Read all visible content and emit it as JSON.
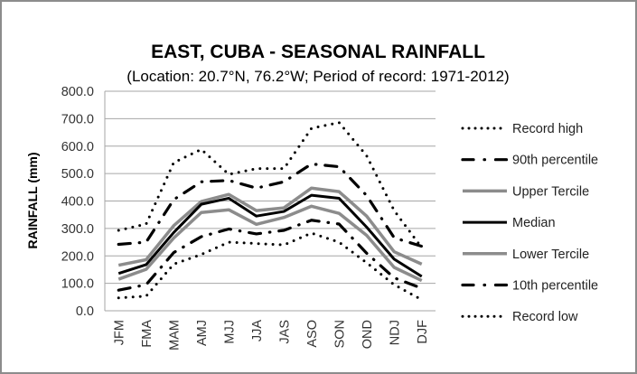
{
  "chart_data": {
    "type": "line",
    "title": "EAST, CUBA - SEASONAL RAINFALL",
    "subtitle": "(Location: 20.7°N, 76.2°W; Period of record: 1971-2012)",
    "xlabel": "",
    "ylabel": "RAINFALL (mm)",
    "ylim": [
      0,
      800
    ],
    "yticks": [
      "0.0",
      "100.0",
      "200.0",
      "300.0",
      "400.0",
      "500.0",
      "600.0",
      "700.0",
      "800.0"
    ],
    "ytick_values": [
      0,
      100,
      200,
      300,
      400,
      500,
      600,
      700,
      800
    ],
    "grid": true,
    "legend_position": "right",
    "categories": [
      "JFM",
      "FMA",
      "MAM",
      "AMJ",
      "MJJ",
      "JJA",
      "JAS",
      "ASO",
      "SON",
      "OND",
      "NDJ",
      "DJF"
    ],
    "series": [
      {
        "name": "Record high",
        "style": "dotted",
        "color": "#000000",
        "values": [
          293,
          316,
          540,
          588,
          497,
          518,
          518,
          665,
          686,
          565,
          365,
          230
        ]
      },
      {
        "name": "90th percentile",
        "style": "dash-dot",
        "color": "#000000",
        "values": [
          242,
          250,
          405,
          470,
          475,
          447,
          470,
          535,
          525,
          420,
          266,
          235
        ]
      },
      {
        "name": "Upper Tercile",
        "style": "solid",
        "color": "#8c8c8c",
        "values": [
          166,
          186,
          310,
          398,
          424,
          365,
          375,
          447,
          434,
          345,
          215,
          170
        ]
      },
      {
        "name": "Median",
        "style": "solid",
        "color": "#000000",
        "values": [
          136,
          168,
          285,
          388,
          410,
          345,
          362,
          421,
          410,
          305,
          188,
          125
        ]
      },
      {
        "name": "Lower Tercile",
        "style": "solid",
        "color": "#8c8c8c",
        "values": [
          115,
          151,
          265,
          358,
          368,
          315,
          340,
          381,
          355,
          275,
          158,
          110
        ]
      },
      {
        "name": "10th percentile",
        "style": "dash-dot",
        "color": "#000000",
        "values": [
          75,
          95,
          212,
          270,
          298,
          280,
          293,
          330,
          316,
          210,
          120,
          82
        ]
      },
      {
        "name": "Record low",
        "style": "dotted",
        "color": "#000000",
        "values": [
          47,
          53,
          170,
          205,
          250,
          245,
          240,
          283,
          250,
          175,
          95,
          40
        ]
      }
    ]
  }
}
